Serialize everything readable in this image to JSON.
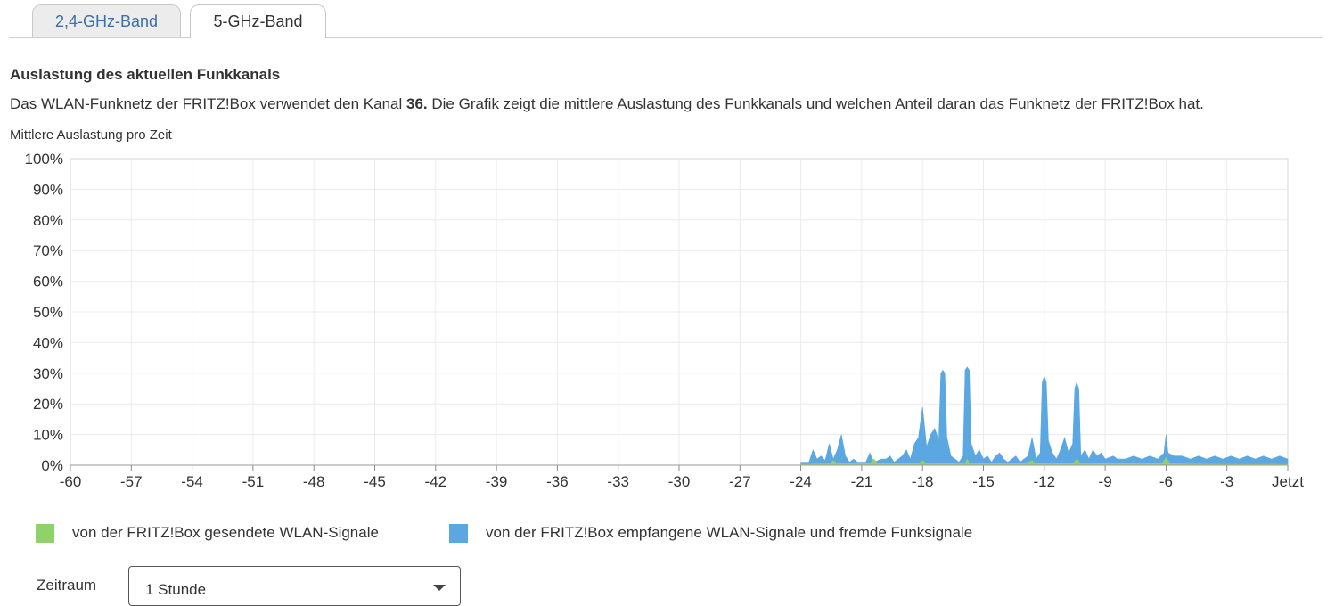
{
  "tabs": [
    {
      "label": "2,4-GHz-Band",
      "active": false
    },
    {
      "label": "5-GHz-Band",
      "active": true
    }
  ],
  "section": {
    "title": "Auslastung des aktuellen Funkkanals",
    "description_pre": "Das WLAN-Funknetz der FRITZ!Box verwendet den Kanal ",
    "channel": "36.",
    "description_post": " Die Grafik zeigt die mittlere Auslastung des Funkkanals und welchen Anteil daran das Funknetz der FRITZ!Box hat."
  },
  "chart_caption": "Mittlere Auslastung pro Zeit",
  "legend": [
    {
      "label": "von der FRITZ!Box gesendete WLAN-Signale",
      "color": "#8fd16a"
    },
    {
      "label": "von der FRITZ!Box empfangene WLAN-Signale und fremde Funksignale",
      "color": "#5aa7e2"
    }
  ],
  "zeitraum": {
    "label": "Zeitraum",
    "value": "1 Stunde"
  },
  "chart_data": {
    "type": "area",
    "title": "Mittlere Auslastung pro Zeit",
    "xlabel": "",
    "ylabel": "",
    "xlim": [
      -60,
      0
    ],
    "ylim": [
      0,
      100
    ],
    "grid": true,
    "x_ticks": [
      -60,
      -57,
      -54,
      -51,
      -48,
      -45,
      -42,
      -39,
      -36,
      -33,
      -30,
      -27,
      -24,
      -21,
      -18,
      -15,
      -12,
      -9,
      -6,
      -3,
      0
    ],
    "x_tick_labels": [
      "-60",
      "-57",
      "-54",
      "-51",
      "-48",
      "-45",
      "-42",
      "-39",
      "-36",
      "-33",
      "-30",
      "-27",
      "-24",
      "-21",
      "-18",
      "-15",
      "-12",
      "-9",
      "-6",
      "-3",
      "Jetzt"
    ],
    "y_ticks": [
      0,
      10,
      20,
      30,
      40,
      50,
      60,
      70,
      80,
      90,
      100
    ],
    "y_tick_labels": [
      "0%",
      "10%",
      "20%",
      "30%",
      "40%",
      "50%",
      "60%",
      "70%",
      "80%",
      "90%",
      "100%"
    ],
    "series": [
      {
        "name": "von der FRITZ!Box empfangene WLAN-Signale und fremde Funksignale",
        "color": "#5aa7e2",
        "points": [
          [
            -24.0,
            0
          ],
          [
            -24.0,
            1
          ],
          [
            -23.6,
            1
          ],
          [
            -23.4,
            5
          ],
          [
            -23.2,
            2
          ],
          [
            -23.0,
            3
          ],
          [
            -22.8,
            1.5
          ],
          [
            -22.6,
            7
          ],
          [
            -22.4,
            2
          ],
          [
            -22.2,
            5
          ],
          [
            -22.0,
            10
          ],
          [
            -21.8,
            3
          ],
          [
            -21.6,
            1
          ],
          [
            -21.4,
            2
          ],
          [
            -21.2,
            1
          ],
          [
            -20.8,
            1
          ],
          [
            -20.6,
            4
          ],
          [
            -20.4,
            1
          ],
          [
            -20.0,
            2
          ],
          [
            -19.8,
            2
          ],
          [
            -19.6,
            3
          ],
          [
            -19.4,
            1
          ],
          [
            -19.2,
            2
          ],
          [
            -19.0,
            3
          ],
          [
            -18.8,
            5
          ],
          [
            -18.6,
            2
          ],
          [
            -18.4,
            7
          ],
          [
            -18.2,
            9
          ],
          [
            -18.0,
            19
          ],
          [
            -17.8,
            6
          ],
          [
            -17.6,
            10
          ],
          [
            -17.4,
            12
          ],
          [
            -17.2,
            8
          ],
          [
            -17.1,
            30
          ],
          [
            -17.0,
            31
          ],
          [
            -16.9,
            30
          ],
          [
            -16.8,
            9
          ],
          [
            -16.6,
            3
          ],
          [
            -16.4,
            2
          ],
          [
            -16.2,
            1
          ],
          [
            -16.0,
            3
          ],
          [
            -15.9,
            31
          ],
          [
            -15.8,
            32
          ],
          [
            -15.7,
            31
          ],
          [
            -15.6,
            7
          ],
          [
            -15.4,
            3
          ],
          [
            -15.2,
            5
          ],
          [
            -15.0,
            2
          ],
          [
            -14.8,
            3
          ],
          [
            -14.6,
            1
          ],
          [
            -14.4,
            3
          ],
          [
            -14.2,
            4
          ],
          [
            -14.0,
            2
          ],
          [
            -13.8,
            1
          ],
          [
            -13.6,
            2
          ],
          [
            -13.4,
            3
          ],
          [
            -13.2,
            1
          ],
          [
            -13.0,
            2
          ],
          [
            -12.8,
            3
          ],
          [
            -12.6,
            9
          ],
          [
            -12.4,
            2
          ],
          [
            -12.2,
            4
          ],
          [
            -12.1,
            27
          ],
          [
            -12.0,
            29
          ],
          [
            -11.9,
            27
          ],
          [
            -11.8,
            8
          ],
          [
            -11.6,
            4
          ],
          [
            -11.4,
            2
          ],
          [
            -11.2,
            5
          ],
          [
            -11.0,
            9
          ],
          [
            -10.8,
            4
          ],
          [
            -10.6,
            7
          ],
          [
            -10.5,
            25
          ],
          [
            -10.4,
            27
          ],
          [
            -10.3,
            25
          ],
          [
            -10.2,
            3
          ],
          [
            -10.0,
            5
          ],
          [
            -9.8,
            2
          ],
          [
            -9.6,
            5
          ],
          [
            -9.4,
            3
          ],
          [
            -9.2,
            4
          ],
          [
            -9.0,
            2
          ],
          [
            -8.6,
            3
          ],
          [
            -8.4,
            2
          ],
          [
            -8.0,
            2
          ],
          [
            -7.6,
            3
          ],
          [
            -7.2,
            2
          ],
          [
            -6.8,
            3
          ],
          [
            -6.4,
            2
          ],
          [
            -6.1,
            4
          ],
          [
            -6.0,
            10
          ],
          [
            -5.9,
            4
          ],
          [
            -5.6,
            3
          ],
          [
            -5.2,
            3
          ],
          [
            -4.8,
            2
          ],
          [
            -4.4,
            3
          ],
          [
            -4.0,
            2
          ],
          [
            -3.6,
            3
          ],
          [
            -3.2,
            2
          ],
          [
            -2.8,
            3
          ],
          [
            -2.4,
            2
          ],
          [
            -2.0,
            3
          ],
          [
            -1.6,
            2
          ],
          [
            -1.2,
            3
          ],
          [
            -0.8,
            2
          ],
          [
            -0.4,
            3
          ],
          [
            0.0,
            2
          ],
          [
            0.0,
            0
          ]
        ]
      },
      {
        "name": "von der FRITZ!Box gesendete WLAN-Signale",
        "color": "#8fd16a",
        "points": [
          [
            -24.0,
            0
          ],
          [
            -24.0,
            0.3
          ],
          [
            -22.6,
            0.5
          ],
          [
            -22.4,
            1.5
          ],
          [
            -22.2,
            0.5
          ],
          [
            -20.6,
            0.5
          ],
          [
            -20.4,
            2
          ],
          [
            -20.2,
            0.5
          ],
          [
            -18.2,
            0.5
          ],
          [
            -18.0,
            1.5
          ],
          [
            -17.8,
            0.5
          ],
          [
            -17.0,
            0.8
          ],
          [
            -15.9,
            0.5
          ],
          [
            -15.8,
            2
          ],
          [
            -15.7,
            0.5
          ],
          [
            -13.0,
            0.5
          ],
          [
            -12.6,
            1.5
          ],
          [
            -12.4,
            0.5
          ],
          [
            -10.6,
            0.5
          ],
          [
            -10.4,
            2
          ],
          [
            -10.2,
            0.5
          ],
          [
            -6.2,
            0.5
          ],
          [
            -6.0,
            2.5
          ],
          [
            -5.8,
            0.5
          ],
          [
            -3.0,
            0.3
          ],
          [
            0.0,
            0.3
          ],
          [
            0.0,
            0
          ]
        ]
      }
    ]
  }
}
